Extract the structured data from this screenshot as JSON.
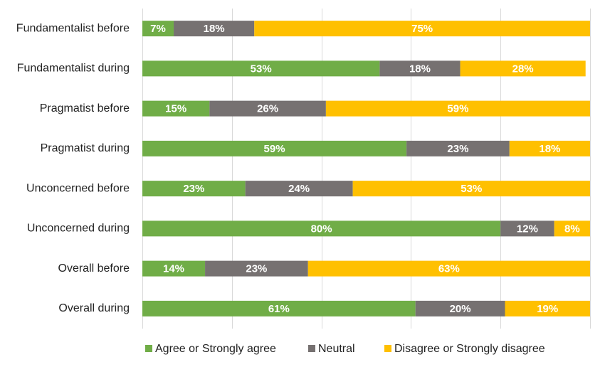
{
  "chart_data": {
    "type": "bar",
    "orientation": "horizontal",
    "stacked": true,
    "xlim": [
      0,
      100
    ],
    "grid": true,
    "legend_position": "bottom",
    "categories": [
      "Fundamentalist before",
      "Fundamentalist during",
      "Pragmatist before",
      "Pragmatist during",
      "Unconcerned before",
      "Unconcerned during",
      "Overall before",
      "Overall during"
    ],
    "series": [
      {
        "name": "Agree or Strongly agree",
        "color": "#70ad47",
        "values": [
          7,
          53,
          15,
          59,
          23,
          80,
          14,
          61
        ],
        "labels": [
          "7%",
          "53%",
          "15%",
          "59%",
          "23%",
          "80%",
          "14%",
          "61%"
        ]
      },
      {
        "name": "Neutral",
        "color": "#767171",
        "values": [
          18,
          18,
          26,
          23,
          24,
          12,
          23,
          20
        ],
        "labels": [
          "18%",
          "18%",
          "26%",
          "23%",
          "24%",
          "12%",
          "23%",
          "20%"
        ]
      },
      {
        "name": "Disagree or Strongly disagree",
        "color": "#ffc000",
        "values": [
          75,
          28,
          59,
          18,
          53,
          8,
          63,
          19
        ],
        "labels": [
          "75%",
          "28%",
          "59%",
          "18%",
          "53%",
          "8%",
          "63%",
          "19%"
        ]
      }
    ]
  }
}
